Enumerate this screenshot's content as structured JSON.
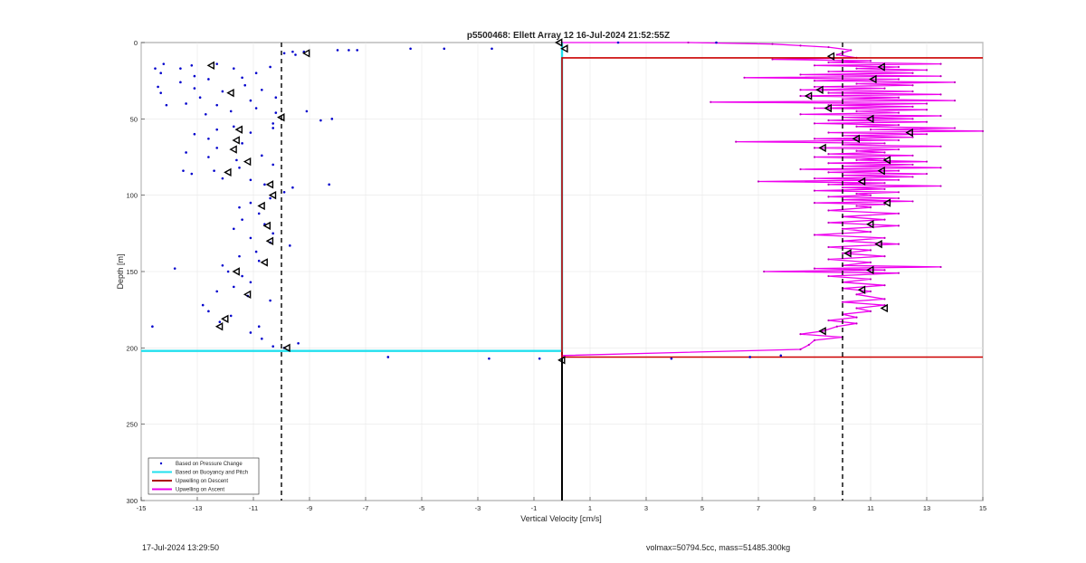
{
  "chart_data": {
    "type": "scatter",
    "title": "p5500468: Ellett Array 12 16-Jul-2024 21:52:55Z",
    "xlabel": "Vertical Velocity [cm/s]",
    "ylabel": "Depth [m]",
    "xlim": [
      -15,
      15
    ],
    "ylim": [
      0,
      300
    ],
    "y_reversed": true,
    "grid": true,
    "xticks": [
      "-15",
      "-13",
      "-11",
      "-9",
      "-7",
      "-5",
      "-3",
      "-1",
      "1",
      "3",
      "5",
      "7",
      "9",
      "11",
      "13",
      "15"
    ],
    "yticks": [
      "0",
      "50",
      "100",
      "150",
      "200",
      "250",
      "300"
    ],
    "legend_position": "bottom-left",
    "legend": [
      {
        "label": "Based on Pressure Change",
        "color": "#0000cc",
        "marker": "dot"
      },
      {
        "label": "Based on Buoyancy and Pitch",
        "color": "#22e0ee",
        "marker": "line"
      },
      {
        "label": "Upwelling on Descent",
        "color": "#aa0000",
        "marker": "line"
      },
      {
        "label": "Upwelling on Ascent",
        "color": "#ee00ee",
        "marker": "line"
      }
    ],
    "reference_lines": {
      "descent_mean_x": -10,
      "ascent_mean_x": 10,
      "zero_x": 0
    },
    "buoyancy_pitch": [
      [
        0,
        0
      ],
      [
        0,
        202
      ],
      [
        -15,
        202
      ]
    ],
    "upwelling_descent": [
      [
        0,
        10
      ],
      [
        15,
        10
      ],
      [
        0,
        10
      ],
      [
        0,
        206
      ],
      [
        15,
        206
      ]
    ],
    "upwelling_ascent": [
      [
        0,
        0
      ],
      [
        4.5,
        0
      ],
      [
        7.5,
        1
      ],
      [
        8.5,
        2
      ],
      [
        9.5,
        3
      ],
      [
        10.3,
        5
      ],
      [
        9.8,
        8
      ],
      [
        10.5,
        10
      ],
      [
        7.5,
        11
      ],
      [
        11,
        12
      ],
      [
        9.5,
        13
      ],
      [
        13.5,
        14
      ],
      [
        9,
        15
      ],
      [
        12,
        16
      ],
      [
        10.5,
        17
      ],
      [
        13,
        18
      ],
      [
        9.5,
        19
      ],
      [
        12.5,
        20
      ],
      [
        8.5,
        21
      ],
      [
        13.5,
        22
      ],
      [
        6.5,
        23
      ],
      [
        12,
        24
      ],
      [
        9,
        25
      ],
      [
        14,
        26
      ],
      [
        10.5,
        27
      ],
      [
        12.5,
        28
      ],
      [
        9,
        29
      ],
      [
        11.5,
        30
      ],
      [
        8.5,
        31
      ],
      [
        12.5,
        32
      ],
      [
        9.5,
        33
      ],
      [
        13.5,
        34
      ],
      [
        8.5,
        35
      ],
      [
        12,
        36
      ],
      [
        10,
        37
      ],
      [
        14,
        38
      ],
      [
        5.3,
        39
      ],
      [
        13,
        40
      ],
      [
        9.5,
        41
      ],
      [
        12.5,
        42
      ],
      [
        9,
        43
      ],
      [
        13,
        44
      ],
      [
        10.5,
        45
      ],
      [
        12,
        46
      ],
      [
        8.5,
        47
      ],
      [
        13.5,
        48
      ],
      [
        10,
        49
      ],
      [
        12.5,
        50
      ],
      [
        9.5,
        51
      ],
      [
        13,
        52
      ],
      [
        9,
        53
      ],
      [
        12,
        54
      ],
      [
        10.5,
        55
      ],
      [
        14,
        56
      ],
      [
        11,
        57
      ],
      [
        15,
        58
      ],
      [
        9.5,
        59
      ],
      [
        13,
        60
      ],
      [
        10,
        61
      ],
      [
        12.5,
        62
      ],
      [
        9,
        63
      ],
      [
        12,
        64
      ],
      [
        6.2,
        65
      ],
      [
        11.5,
        66
      ],
      [
        10,
        67
      ],
      [
        13.5,
        68
      ],
      [
        9,
        69
      ],
      [
        12,
        70
      ],
      [
        10.5,
        71
      ],
      [
        11.5,
        72
      ],
      [
        9.5,
        73
      ],
      [
        12.5,
        74
      ],
      [
        9,
        75
      ],
      [
        11.5,
        76
      ],
      [
        10.5,
        77
      ],
      [
        13,
        78
      ],
      [
        9.5,
        79
      ],
      [
        12.5,
        80
      ],
      [
        10,
        81
      ],
      [
        13.5,
        82
      ],
      [
        8.5,
        83
      ],
      [
        12,
        84
      ],
      [
        9.5,
        85
      ],
      [
        13,
        86
      ],
      [
        10,
        87
      ],
      [
        12.5,
        88
      ],
      [
        9,
        89
      ],
      [
        12,
        90
      ],
      [
        7,
        91
      ],
      [
        11.5,
        92
      ],
      [
        9.5,
        93
      ],
      [
        13.5,
        94
      ],
      [
        10,
        95
      ],
      [
        11.5,
        96
      ],
      [
        9,
        97
      ],
      [
        12,
        98
      ],
      [
        10.5,
        99
      ],
      [
        11,
        100
      ],
      [
        9.5,
        101
      ],
      [
        12,
        102
      ],
      [
        10,
        103
      ],
      [
        12.5,
        104
      ],
      [
        9,
        105
      ],
      [
        11.5,
        106
      ],
      [
        10.5,
        107
      ],
      [
        11,
        108
      ],
      [
        9.5,
        110
      ],
      [
        12,
        112
      ],
      [
        10,
        114
      ],
      [
        11.5,
        116
      ],
      [
        9.5,
        118
      ],
      [
        12,
        120
      ],
      [
        10,
        122
      ],
      [
        11,
        124
      ],
      [
        9,
        126
      ],
      [
        11.5,
        128
      ],
      [
        10,
        130
      ],
      [
        12,
        132
      ],
      [
        9.5,
        134
      ],
      [
        11,
        136
      ],
      [
        10,
        138
      ],
      [
        11.5,
        140
      ],
      [
        9.5,
        142
      ],
      [
        11,
        144
      ],
      [
        10,
        146
      ],
      [
        13.5,
        147
      ],
      [
        9,
        148
      ],
      [
        11.5,
        149
      ],
      [
        7.2,
        150
      ],
      [
        12,
        151
      ],
      [
        9.5,
        153
      ],
      [
        11,
        155
      ],
      [
        10,
        157
      ],
      [
        11.5,
        159
      ],
      [
        10,
        161
      ],
      [
        11,
        163
      ],
      [
        10.5,
        165
      ],
      [
        11.5,
        168
      ],
      [
        10,
        170
      ],
      [
        11.5,
        172
      ],
      [
        10.5,
        174
      ],
      [
        11,
        176
      ],
      [
        10,
        178
      ],
      [
        10.5,
        180
      ],
      [
        9.5,
        182
      ],
      [
        10.5,
        184
      ],
      [
        9.8,
        186
      ],
      [
        9.3,
        189
      ],
      [
        8.5,
        191
      ],
      [
        10,
        193
      ],
      [
        9,
        195
      ],
      [
        8.8,
        198
      ],
      [
        8.5,
        201
      ],
      [
        0,
        205
      ],
      [
        0,
        206
      ]
    ],
    "pressure_change_points": [
      [
        -2.5,
        4
      ],
      [
        -4.2,
        4
      ],
      [
        -5.4,
        4
      ],
      [
        -7.3,
        5
      ],
      [
        -7.6,
        5
      ],
      [
        -8.0,
        5
      ],
      [
        -9.2,
        6
      ],
      [
        -9.6,
        6
      ],
      [
        -9.9,
        7
      ],
      [
        -9.5,
        8
      ],
      [
        -14.5,
        17
      ],
      [
        -14.2,
        14
      ],
      [
        -14.3,
        20
      ],
      [
        -13.2,
        15
      ],
      [
        -13.6,
        17
      ],
      [
        -13.1,
        22
      ],
      [
        -12.3,
        14
      ],
      [
        -11.7,
        17
      ],
      [
        -10.9,
        20
      ],
      [
        -10.4,
        16
      ],
      [
        -11.4,
        23
      ],
      [
        -12.6,
        24
      ],
      [
        -13.6,
        26
      ],
      [
        -14.4,
        29
      ],
      [
        -14.3,
        33
      ],
      [
        -13.1,
        30
      ],
      [
        -12.1,
        32
      ],
      [
        -10.7,
        31
      ],
      [
        -11.3,
        28
      ],
      [
        -13.4,
        40
      ],
      [
        -14.1,
        41
      ],
      [
        -12.9,
        36
      ],
      [
        -12.3,
        41
      ],
      [
        -11.1,
        38
      ],
      [
        -10.2,
        36
      ],
      [
        -11.8,
        45
      ],
      [
        -12.7,
        47
      ],
      [
        -10.9,
        43
      ],
      [
        -10.2,
        46
      ],
      [
        -9.1,
        45
      ],
      [
        -8.6,
        51
      ],
      [
        -8.2,
        50
      ],
      [
        -10.3,
        53
      ],
      [
        -11.7,
        55
      ],
      [
        -12.3,
        57
      ],
      [
        -13.1,
        60
      ],
      [
        -12.6,
        63
      ],
      [
        -11.1,
        59
      ],
      [
        -10.3,
        56
      ],
      [
        -11.4,
        66
      ],
      [
        -12.3,
        69
      ],
      [
        -13.4,
        72
      ],
      [
        -12.6,
        75
      ],
      [
        -11.6,
        77
      ],
      [
        -10.7,
        74
      ],
      [
        -10.3,
        80
      ],
      [
        -11.5,
        82
      ],
      [
        -12.4,
        84
      ],
      [
        -13.2,
        86
      ],
      [
        -13.5,
        84
      ],
      [
        -12.1,
        89
      ],
      [
        -11.1,
        90
      ],
      [
        -10.6,
        93
      ],
      [
        -9.6,
        95
      ],
      [
        -8.3,
        93
      ],
      [
        -9.9,
        98
      ],
      [
        -10.4,
        102
      ],
      [
        -11.1,
        105
      ],
      [
        -11.5,
        108
      ],
      [
        -10.8,
        112
      ],
      [
        -11.4,
        116
      ],
      [
        -10.6,
        119
      ],
      [
        -11.7,
        122
      ],
      [
        -10.3,
        125
      ],
      [
        -11.1,
        128
      ],
      [
        -10.4,
        131
      ],
      [
        -9.7,
        133
      ],
      [
        -10.9,
        137
      ],
      [
        -11.5,
        140
      ],
      [
        -10.8,
        143
      ],
      [
        -12.1,
        146
      ],
      [
        -13.8,
        148
      ],
      [
        -11.9,
        150
      ],
      [
        -11.4,
        153
      ],
      [
        -11.1,
        157
      ],
      [
        -11.7,
        160
      ],
      [
        -12.3,
        163
      ],
      [
        -11.2,
        166
      ],
      [
        -10.4,
        169
      ],
      [
        -12.8,
        172
      ],
      [
        -12.6,
        176
      ],
      [
        -11.8,
        179
      ],
      [
        -12.2,
        183
      ],
      [
        -14.6,
        186
      ],
      [
        -10.8,
        186
      ],
      [
        -11.1,
        190
      ],
      [
        -10.7,
        194
      ],
      [
        -9.4,
        197
      ],
      [
        -9.9,
        200
      ],
      [
        -10.3,
        199
      ],
      [
        -6.2,
        206
      ],
      [
        -2.6,
        207
      ],
      [
        -0.8,
        207
      ],
      [
        3.9,
        207
      ],
      [
        6.7,
        206
      ],
      [
        7.8,
        205
      ],
      [
        2.0,
        0
      ],
      [
        5.5,
        0
      ]
    ],
    "descent_triangles": [
      [
        -9.1,
        7
      ],
      [
        -12.5,
        15
      ],
      [
        -11.8,
        33
      ],
      [
        -10,
        49
      ],
      [
        -11.5,
        57
      ],
      [
        -11.6,
        64
      ],
      [
        -11.7,
        70
      ],
      [
        -11.2,
        78
      ],
      [
        -11.9,
        85
      ],
      [
        -10.4,
        93
      ],
      [
        -10.3,
        100
      ],
      [
        -10.7,
        107
      ],
      [
        -10.5,
        120
      ],
      [
        -10.4,
        130
      ],
      [
        -10.6,
        144
      ],
      [
        -11.6,
        150
      ],
      [
        -11.2,
        165
      ],
      [
        -12.0,
        181
      ],
      [
        -12.2,
        186
      ],
      [
        -9.8,
        200
      ],
      [
        -0.1,
        0
      ],
      [
        0.1,
        4
      ]
    ],
    "ascent_triangles": [
      [
        9.6,
        9
      ],
      [
        11.4,
        16
      ],
      [
        11.1,
        24
      ],
      [
        9.2,
        31
      ],
      [
        8.8,
        35
      ],
      [
        9.5,
        43
      ],
      [
        11.0,
        50
      ],
      [
        12.4,
        59
      ],
      [
        10.5,
        63
      ],
      [
        9.3,
        69
      ],
      [
        11.6,
        77
      ],
      [
        11.4,
        84
      ],
      [
        10.7,
        91
      ],
      [
        11.6,
        105
      ],
      [
        11.0,
        119
      ],
      [
        11.3,
        132
      ],
      [
        10.2,
        138
      ],
      [
        11.0,
        149
      ],
      [
        10.7,
        162
      ],
      [
        11.5,
        174
      ],
      [
        9.3,
        189
      ],
      [
        0,
        208
      ]
    ]
  },
  "footer": {
    "timestamp": "17-Jul-2024 13:29:50",
    "summary": "volmax=50794.5cc, mass=51485.300kg"
  }
}
